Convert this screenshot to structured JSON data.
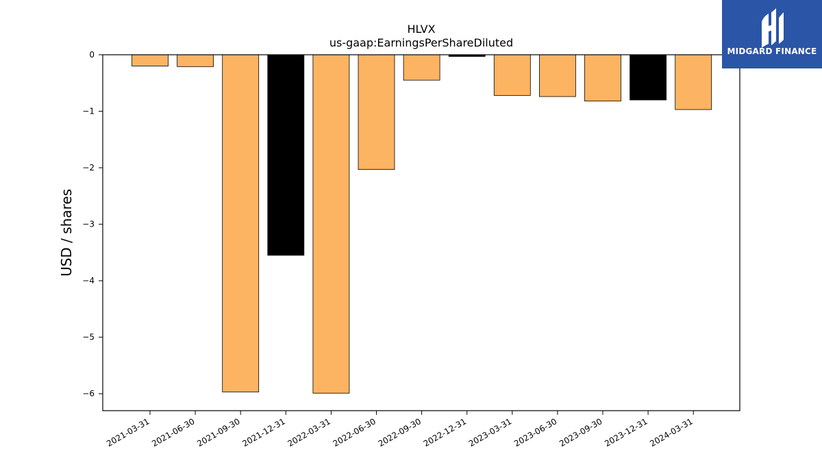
{
  "chart_data": {
    "type": "bar",
    "title": "HLVX",
    "subtitle": "us-gaap:EarningsPerShareDiluted",
    "xlabel": "",
    "ylabel": "USD / shares",
    "ylim": [
      -6.3,
      0
    ],
    "yticks": [
      0,
      -1,
      -2,
      -3,
      -4,
      -5,
      -6
    ],
    "ytick_labels": [
      "0",
      "−1",
      "−2",
      "−3",
      "−4",
      "−5",
      "−6"
    ],
    "categories": [
      "2021-03-31",
      "2021-06-30",
      "2021-09-30",
      "2021-12-31",
      "2022-03-31",
      "2022-06-30",
      "2022-09-30",
      "2022-12-31",
      "2023-03-31",
      "2023-06-30",
      "2023-09-30",
      "2023-12-31",
      "2024-03-31"
    ],
    "values": [
      -0.2,
      -0.21,
      -5.97,
      -3.55,
      -5.99,
      -2.03,
      -0.45,
      -0.03,
      -0.72,
      -0.74,
      -0.82,
      -0.8,
      -0.97
    ],
    "bar_colors": [
      "#fdb462",
      "#fdb462",
      "#fdb462",
      "#000000",
      "#fdb462",
      "#fdb462",
      "#fdb462",
      "#000000",
      "#fdb462",
      "#fdb462",
      "#fdb462",
      "#000000",
      "#fdb462"
    ],
    "grid": false,
    "legend": "none"
  },
  "logo": {
    "text": "MIDGARD FINANCE",
    "background": "#2b55a6"
  }
}
